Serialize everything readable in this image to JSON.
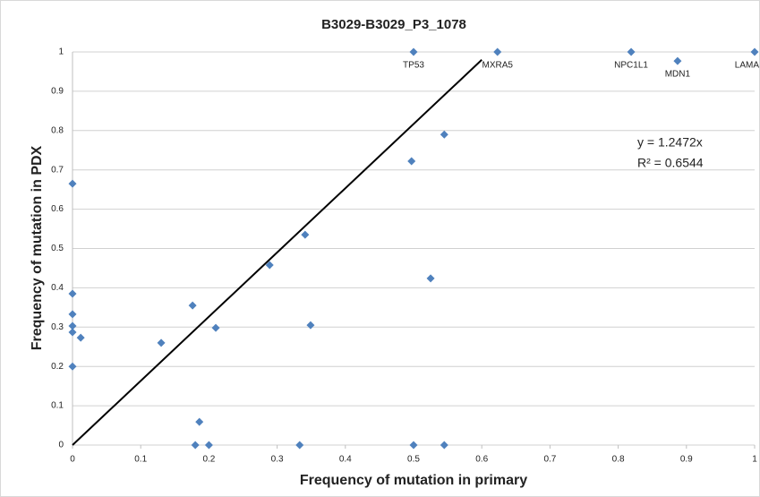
{
  "chart_data": {
    "type": "scatter",
    "title": "B3029-B3029_P3_1078",
    "x_label": "Frequency of mutation in primary",
    "y_label": "Frequency of mutation in PDX",
    "x": [
      0,
      0,
      0,
      0,
      0,
      0.012,
      0,
      0.13,
      0.176,
      0.21,
      0.186,
      0.18,
      0.2,
      0.289,
      0.341,
      0.349,
      0.333,
      0.497,
      0.545,
      0.525,
      0.5,
      0.545,
      0.5,
      0.623,
      0.819,
      0.887,
      1
    ],
    "values": [
      0.665,
      0.385,
      0.333,
      0.303,
      0.287,
      0.273,
      0.2,
      0.26,
      0.355,
      0.298,
      0.059,
      0,
      0,
      0.458,
      0.535,
      0.305,
      0,
      0.722,
      0.79,
      0.424,
      0,
      0,
      1,
      1,
      1,
      0.977,
      1
    ],
    "point_labels": [
      null,
      null,
      null,
      null,
      null,
      null,
      null,
      null,
      null,
      null,
      null,
      null,
      null,
      null,
      null,
      null,
      null,
      null,
      null,
      null,
      null,
      null,
      "TP53",
      "MXRA5",
      "NPC1L1",
      "MDN1",
      "LAMA"
    ],
    "color": "#4f81bd",
    "trendline": {
      "x": [
        0,
        0.6
      ],
      "y": [
        0,
        0.98
      ],
      "equation": "y = 1.2472x",
      "r_squared": "R² = 0.6544"
    },
    "xlim": [
      0,
      1
    ],
    "ylim": [
      0,
      1
    ],
    "xticks": [
      0,
      0.1,
      0.2,
      0.3,
      0.4,
      0.5,
      0.6,
      0.7,
      0.8,
      0.9,
      1
    ],
    "yticks": [
      0,
      0.1,
      0.2,
      0.3,
      0.4,
      0.5,
      0.6,
      0.7,
      0.8,
      0.9,
      1
    ],
    "grid": true
  }
}
